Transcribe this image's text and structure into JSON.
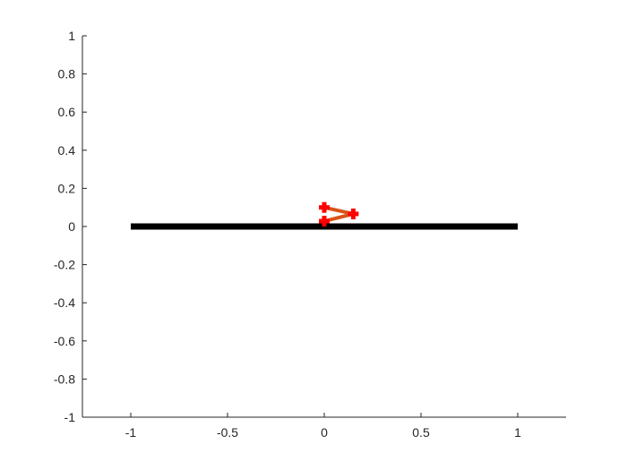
{
  "chart_data": {
    "type": "line",
    "title": "",
    "xlabel": "",
    "ylabel": "",
    "xlim": [
      -1.25,
      1.25
    ],
    "ylim": [
      -1,
      1
    ],
    "xticks": [
      "-1",
      "-0.5",
      "0",
      "0.5",
      "1"
    ],
    "xtick_values": [
      -1,
      -0.5,
      0,
      0.5,
      1
    ],
    "yticks": [
      "-1",
      "-0.8",
      "-0.6",
      "-0.4",
      "-0.2",
      "0",
      "0.2",
      "0.4",
      "0.6",
      "0.8",
      "1"
    ],
    "ytick_values": [
      -1,
      -0.8,
      -0.6,
      -0.4,
      -0.2,
      0,
      0.2,
      0.4,
      0.6,
      0.8,
      1
    ],
    "grid": false,
    "series": [
      {
        "x": [
          -1,
          1
        ],
        "y": [
          0,
          0
        ],
        "color": "#000000",
        "marker": "none"
      },
      {
        "x": [
          0,
          0.15,
          0
        ],
        "y": [
          0.1,
          0.066,
          0.028
        ],
        "color": "#D95319",
        "marker": "+",
        "marker_color": "#FF0000"
      }
    ]
  }
}
